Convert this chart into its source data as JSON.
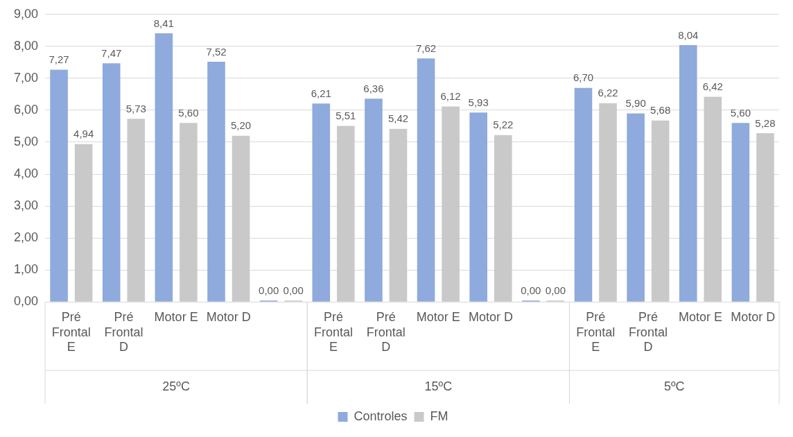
{
  "chart_data": {
    "type": "bar",
    "categories": [
      "Pré Frontal E",
      "Pré Frontal D",
      "Motor E",
      "Motor D",
      null,
      "Pré Frontal E",
      "Pré Frontal D",
      "Motor E",
      "Motor D",
      null,
      "Pré Frontal E",
      "Pré Frontal D",
      "Motor E",
      "Motor D"
    ],
    "series": [
      {
        "name": "Controles",
        "color": "#8faadc",
        "values": [
          7.27,
          7.47,
          8.41,
          7.52,
          0,
          6.21,
          6.36,
          7.62,
          5.93,
          0,
          6.7,
          5.9,
          8.04,
          5.6
        ],
        "value_labels": [
          "7,27",
          "7,47",
          "8,41",
          "7,52",
          "0,00",
          "6,21",
          "6,36",
          "7,62",
          "5,93",
          "0,00",
          "6,70",
          "5,90",
          "8,04",
          "5,60"
        ]
      },
      {
        "name": "FM",
        "color": "#c9c9c9",
        "values": [
          4.94,
          5.73,
          5.6,
          5.2,
          0,
          5.51,
          5.42,
          6.12,
          5.22,
          0,
          6.22,
          5.68,
          6.42,
          5.28
        ],
        "value_labels": [
          "4,94",
          "5,73",
          "5,60",
          "5,20",
          "0,00",
          "5,51",
          "5,42",
          "6,12",
          "5,22",
          "0,00",
          "6,22",
          "5,68",
          "6,42",
          "5,28"
        ]
      }
    ],
    "annotations": [
      "25ºC",
      "15ºC",
      "5ºC"
    ],
    "ylim": [
      0,
      9
    ],
    "yticks": [
      {
        "value": 0,
        "label": "0,00"
      },
      {
        "value": 1,
        "label": "1,00"
      },
      {
        "value": 2,
        "label": "2,00"
      },
      {
        "value": 3,
        "label": "3,00"
      },
      {
        "value": 4,
        "label": "4,00"
      },
      {
        "value": 5,
        "label": "5,00"
      },
      {
        "value": 6,
        "label": "6,00"
      },
      {
        "value": 7,
        "label": "7,00"
      },
      {
        "value": 8,
        "label": "8,00"
      },
      {
        "value": 9,
        "label": "9,00"
      }
    ],
    "grid": "y",
    "legend": "bottom"
  }
}
